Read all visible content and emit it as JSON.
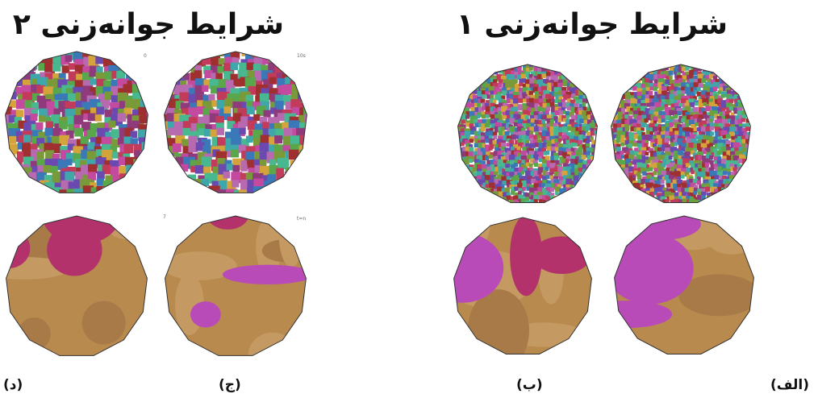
{
  "headings": {
    "left": "شرایط جوانه‌زنی ۲",
    "right": "شرایط جوانه‌زنی ۱"
  },
  "captions": {
    "d": "(د)",
    "c": "(ج)",
    "b": "(ب)",
    "a": "(الف)"
  },
  "corner_marks": {
    "panel_d_top": "0",
    "panel_c_top": "10s",
    "panel_c_bottom": "7",
    "panel_c_bottom_2": "t=n"
  },
  "colors": {
    "fine_palette": [
      "#c23b5a",
      "#8f3a7a",
      "#3fa7a9",
      "#5aa64a",
      "#c44aa0",
      "#d4a43a",
      "#6a4ab0",
      "#a03030",
      "#48b890",
      "#b86ab0",
      "#7a9a3a",
      "#3a78b8"
    ],
    "coarse_palette": [
      "#b98a4e",
      "#c49a62",
      "#a87a48",
      "#b3326c",
      "#b94bb8"
    ],
    "outline": "#333333"
  }
}
